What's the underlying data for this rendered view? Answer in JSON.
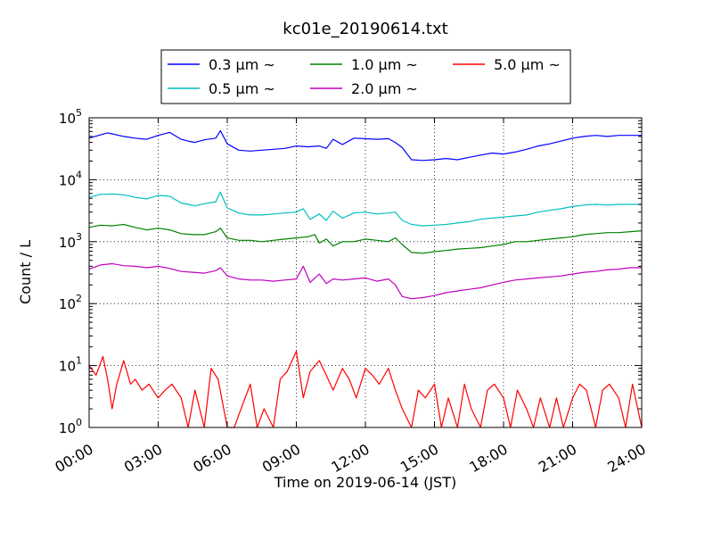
{
  "chart_data": {
    "type": "line",
    "title": "kc01e_20190614.txt",
    "xlabel": "Time on 2019-06-14 (JST)",
    "ylabel": "Count / L",
    "yscale": "log",
    "ylim": [
      1,
      100000
    ],
    "xlim": [
      0,
      24
    ],
    "grid": true,
    "legend_position": "top",
    "x_tick_labels": [
      "00:00",
      "03:00",
      "06:00",
      "09:00",
      "12:00",
      "15:00",
      "18:00",
      "21:00",
      "24:00"
    ],
    "y_tick_labels": [
      {
        "base": "10",
        "exp": "0"
      },
      {
        "base": "10",
        "exp": "1"
      },
      {
        "base": "10",
        "exp": "2"
      },
      {
        "base": "10",
        "exp": "3"
      },
      {
        "base": "10",
        "exp": "4"
      },
      {
        "base": "10",
        "exp": "5"
      }
    ],
    "series": [
      {
        "name": "0.3 μm ~",
        "color": "#0000ff",
        "x": [
          0,
          0.5,
          0.8,
          1.0,
          1.5,
          2.0,
          2.5,
          3.0,
          3.5,
          4.0,
          4.3,
          4.6,
          5.0,
          5.5,
          5.7,
          6.0,
          6.5,
          7.0,
          7.5,
          8.0,
          8.5,
          9.0,
          9.5,
          10.0,
          10.3,
          10.6,
          11.0,
          11.5,
          12.0,
          12.5,
          13.0,
          13.3,
          13.6,
          14.0,
          14.5,
          15.0,
          15.5,
          16.0,
          16.5,
          17.0,
          17.5,
          18.0,
          18.5,
          19.0,
          19.5,
          20.0,
          20.5,
          21.0,
          21.5,
          22.0,
          22.5,
          23.0,
          23.5,
          24.0
        ],
        "y": [
          47000,
          53000,
          57000,
          55000,
          50000,
          47000,
          45000,
          52000,
          58000,
          45000,
          42000,
          40000,
          44000,
          47000,
          62000,
          38000,
          30000,
          29000,
          30000,
          31000,
          32000,
          35000,
          34000,
          35000,
          32000,
          45000,
          37000,
          47000,
          46000,
          45000,
          46000,
          40000,
          33000,
          21000,
          20500,
          21000,
          22000,
          21000,
          23000,
          25000,
          27000,
          26000,
          28000,
          31000,
          35000,
          38000,
          42000,
          47000,
          50000,
          52000,
          50000,
          52000,
          52000,
          52000
        ]
      },
      {
        "name": "0.5 μm ~",
        "color": "#00bfbf",
        "x": [
          0,
          0.5,
          1.0,
          1.5,
          2.0,
          2.5,
          3.0,
          3.5,
          4.0,
          4.3,
          4.6,
          5.0,
          5.5,
          5.7,
          6.0,
          6.5,
          7.0,
          7.5,
          8.0,
          8.5,
          9.0,
          9.3,
          9.6,
          10.0,
          10.3,
          10.6,
          11.0,
          11.5,
          12.0,
          12.5,
          13.0,
          13.3,
          13.6,
          14.0,
          14.5,
          15.0,
          15.5,
          16.0,
          16.5,
          17.0,
          17.5,
          18.0,
          18.5,
          19.0,
          19.5,
          20.0,
          20.5,
          21.0,
          21.5,
          22.0,
          22.5,
          23.0,
          23.5,
          24.0
        ],
        "y": [
          5200,
          5800,
          5900,
          5700,
          5200,
          4900,
          5600,
          5400,
          4200,
          4000,
          3800,
          4100,
          4400,
          6300,
          3500,
          2900,
          2700,
          2700,
          2800,
          2900,
          3000,
          3400,
          2300,
          2800,
          2200,
          3100,
          2400,
          2900,
          3000,
          2800,
          2900,
          3000,
          2200,
          1900,
          1800,
          1850,
          1900,
          2000,
          2100,
          2300,
          2400,
          2500,
          2600,
          2700,
          3000,
          3200,
          3400,
          3700,
          3900,
          4000,
          3900,
          4000,
          4000,
          4000
        ]
      },
      {
        "name": "1.0 μm ~",
        "color": "#008000",
        "x": [
          0,
          0.5,
          1.0,
          1.5,
          2.0,
          2.5,
          3.0,
          3.5,
          4.0,
          4.5,
          5.0,
          5.5,
          5.7,
          6.0,
          6.5,
          7.0,
          7.5,
          8.0,
          8.5,
          9.0,
          9.5,
          9.8,
          10.0,
          10.3,
          10.6,
          11.0,
          11.5,
          12.0,
          12.5,
          13.0,
          13.3,
          13.6,
          14.0,
          14.5,
          15.0,
          15.5,
          16.0,
          16.5,
          17.0,
          17.5,
          18.0,
          18.5,
          19.0,
          19.5,
          20.0,
          20.5,
          21.0,
          21.5,
          22.0,
          22.5,
          23.0,
          23.5,
          24.0
        ],
        "y": [
          1700,
          1850,
          1800,
          1900,
          1700,
          1550,
          1650,
          1550,
          1350,
          1300,
          1300,
          1450,
          1650,
          1150,
          1050,
          1050,
          1000,
          1050,
          1100,
          1150,
          1200,
          1300,
          950,
          1100,
          850,
          1000,
          1000,
          1100,
          1050,
          1000,
          1150,
          900,
          670,
          650,
          690,
          720,
          760,
          780,
          800,
          850,
          900,
          1000,
          1000,
          1050,
          1100,
          1150,
          1200,
          1300,
          1350,
          1400,
          1400,
          1450,
          1500
        ]
      },
      {
        "name": "2.0 μm ~",
        "color": "#bf00bf",
        "x": [
          0,
          0.5,
          1.0,
          1.5,
          2.0,
          2.5,
          3.0,
          3.5,
          4.0,
          4.5,
          5.0,
          5.5,
          5.7,
          6.0,
          6.5,
          7.0,
          7.5,
          8.0,
          8.5,
          9.0,
          9.3,
          9.6,
          10.0,
          10.3,
          10.6,
          11.0,
          11.5,
          12.0,
          12.5,
          13.0,
          13.3,
          13.6,
          14.0,
          14.5,
          15.0,
          15.5,
          16.0,
          16.5,
          17.0,
          17.5,
          18.0,
          18.5,
          19.0,
          19.5,
          20.0,
          20.5,
          21.0,
          21.5,
          22.0,
          22.5,
          23.0,
          23.5,
          24.0
        ],
        "y": [
          360,
          420,
          440,
          410,
          400,
          380,
          400,
          370,
          330,
          320,
          310,
          340,
          380,
          280,
          250,
          240,
          240,
          230,
          240,
          250,
          400,
          220,
          300,
          210,
          250,
          240,
          250,
          260,
          230,
          250,
          200,
          130,
          120,
          125,
          135,
          150,
          160,
          170,
          180,
          200,
          220,
          240,
          250,
          260,
          270,
          280,
          300,
          320,
          330,
          350,
          360,
          380,
          380
        ]
      },
      {
        "name": "5.0 μm ~",
        "color": "#ff0000",
        "x": [
          0,
          0.3,
          0.6,
          0.8,
          1.0,
          1.2,
          1.5,
          1.8,
          2.0,
          2.3,
          2.6,
          3.0,
          3.3,
          3.6,
          4.0,
          4.3,
          4.6,
          5.0,
          5.3,
          5.6,
          6.0,
          6.3,
          6.6,
          7.0,
          7.3,
          7.6,
          8.0,
          8.3,
          8.6,
          9.0,
          9.3,
          9.6,
          10.0,
          10.3,
          10.6,
          11.0,
          11.3,
          11.6,
          12.0,
          12.3,
          12.6,
          13.0,
          13.3,
          13.6,
          14.0,
          14.3,
          14.6,
          15.0,
          15.3,
          15.6,
          16.0,
          16.3,
          16.6,
          17.0,
          17.3,
          17.6,
          18.0,
          18.3,
          18.6,
          19.0,
          19.3,
          19.6,
          20.0,
          20.3,
          20.6,
          21.0,
          21.3,
          21.6,
          22.0,
          22.3,
          22.6,
          23.0,
          23.3,
          23.6,
          24.0
        ],
        "y": [
          10,
          7,
          14,
          6,
          2,
          5,
          12,
          5,
          6,
          4,
          5,
          3,
          4,
          5,
          3,
          1,
          4,
          1,
          9,
          6,
          1,
          1,
          2,
          5,
          1,
          2,
          1,
          6,
          8,
          17,
          3,
          8,
          12,
          7,
          4,
          9,
          6,
          3,
          9,
          7,
          5,
          9,
          4,
          2,
          1,
          4,
          3,
          5,
          1,
          3,
          1,
          5,
          2,
          1,
          4,
          5,
          3,
          1,
          4,
          2,
          1,
          3,
          1,
          3,
          1,
          3,
          5,
          4,
          1,
          4,
          5,
          3,
          1,
          5,
          1
        ]
      }
    ]
  }
}
